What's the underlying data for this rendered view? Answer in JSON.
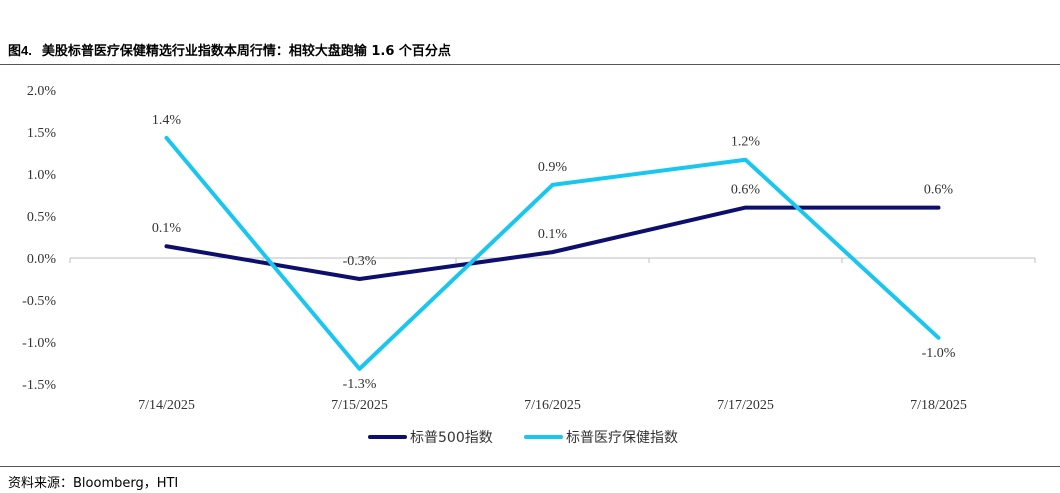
{
  "figure": {
    "number": "图4.",
    "title": "美股标普医疗保健精选行业指数本周行情：相较大盘跑输 1.6 个百分点",
    "source": "资料来源：Bloomberg，HTI"
  },
  "chart_data": {
    "type": "line",
    "categories": [
      "7/14/2025",
      "7/15/2025",
      "7/16/2025",
      "7/17/2025",
      "7/18/2025"
    ],
    "y_ticks": [
      "2.0%",
      "1.5%",
      "1.0%",
      "0.5%",
      "0.0%",
      "-0.5%",
      "-1.0%",
      "-1.5%"
    ],
    "ylim": [
      -1.5,
      2.0
    ],
    "grid": false,
    "legend_position": "bottom",
    "series": [
      {
        "name": "标普500指数",
        "color": "#0e0e6e",
        "values": [
          0.14,
          -0.25,
          0.07,
          0.6,
          0.6
        ],
        "labels": [
          "0.1%",
          "-0.3%",
          "0.1%",
          "0.6%",
          "0.6%"
        ]
      },
      {
        "name": "标普医疗保健指数",
        "color": "#19c6f0",
        "values": [
          1.43,
          -1.32,
          0.87,
          1.17,
          -0.95
        ],
        "labels": [
          "1.4%",
          "-1.3%",
          "0.9%",
          "1.2%",
          "-1.0%"
        ]
      }
    ]
  }
}
